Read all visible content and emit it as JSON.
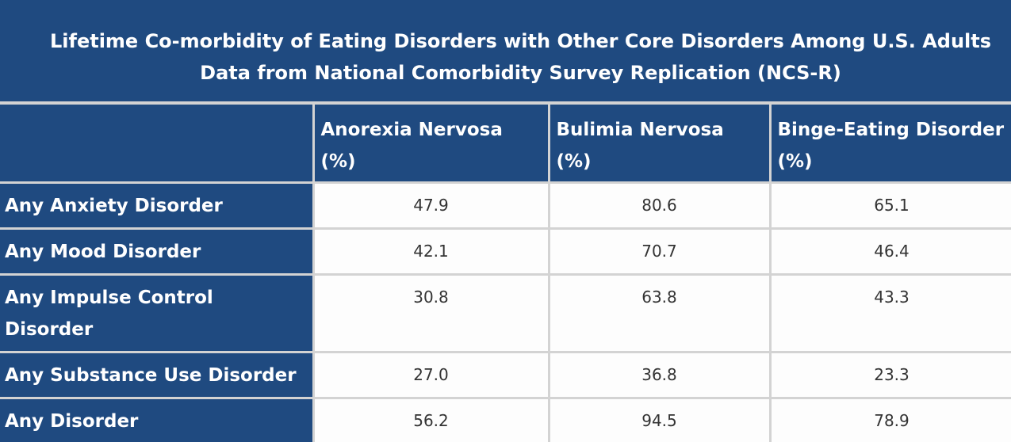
{
  "caption": {
    "line1": "Lifetime Co-morbidity of Eating Disorders with Other Core Disorders Among U.S. Adults",
    "line2": "Data from National Comorbidity Survey Replication (NCS-R)"
  },
  "table": {
    "corner": "",
    "columns": [
      "Anorexia Nervosa (%)",
      "Bulimia Nervosa (%)",
      "Binge-Eating Disorder (%)"
    ],
    "rows": [
      {
        "label": "Any Anxiety Disorder",
        "values": [
          "47.9",
          "80.6",
          "65.1"
        ]
      },
      {
        "label": "Any Mood Disorder",
        "values": [
          "42.1",
          "70.7",
          "46.4"
        ]
      },
      {
        "label": "Any Impulse Control Disorder",
        "values": [
          "30.8",
          "63.8",
          "43.3"
        ]
      },
      {
        "label": "Any Substance Use Disorder",
        "values": [
          "27.0",
          "36.8",
          "23.3"
        ]
      },
      {
        "label": "Any Disorder",
        "values": [
          "56.2",
          "94.5",
          "78.9"
        ]
      }
    ]
  },
  "colors": {
    "header_bg": "#1f4a80",
    "border": "#d3d3d3",
    "cell_bg": "#fdfdfd"
  }
}
